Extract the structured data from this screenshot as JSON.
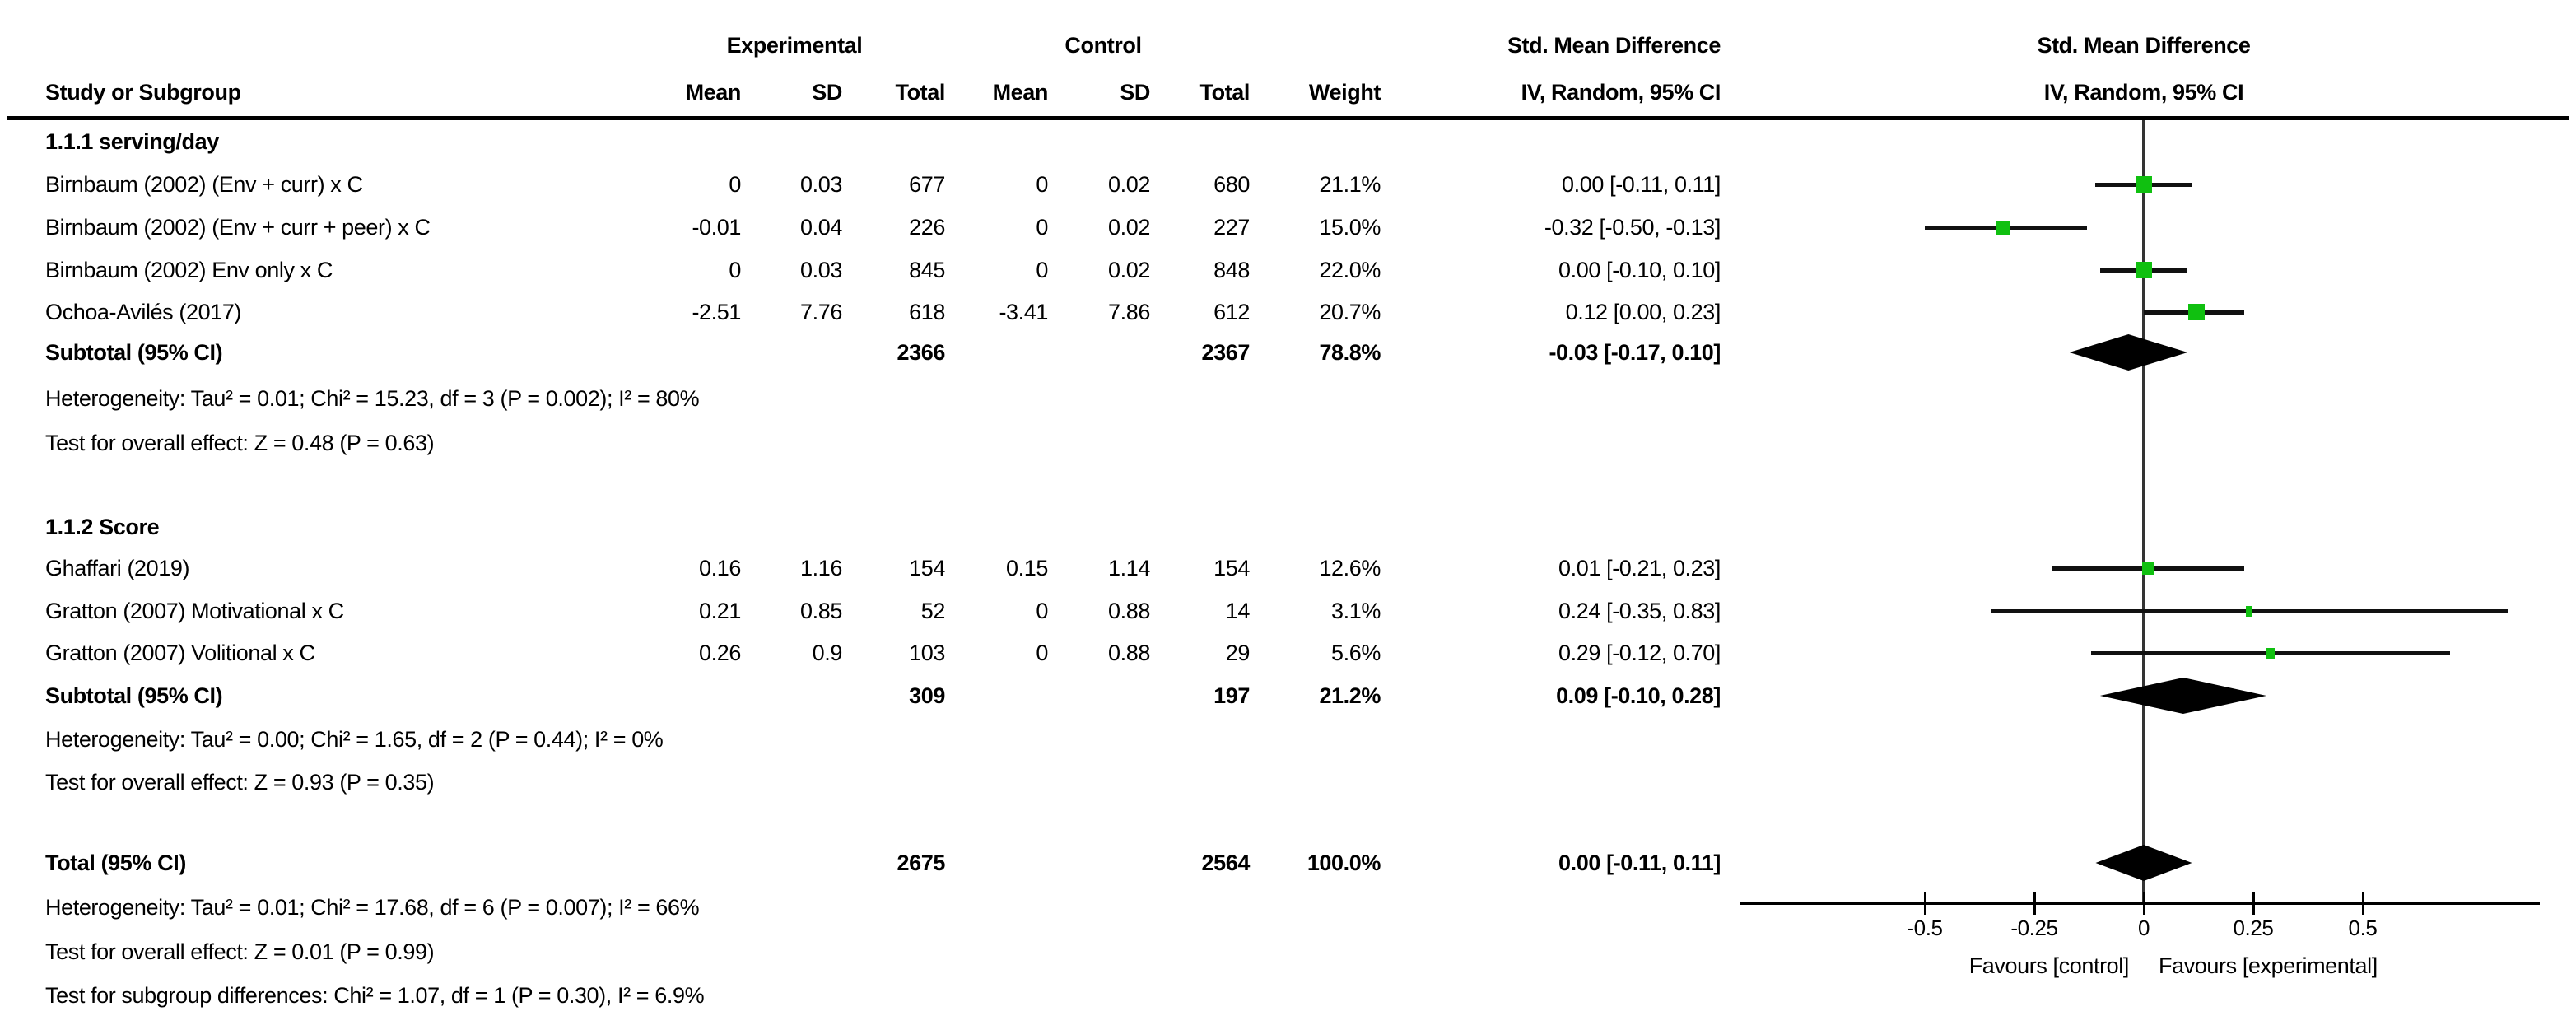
{
  "chart_data": {
    "type": "forest",
    "title_row": {
      "experimental": "Experimental",
      "control": "Control",
      "smd": "Std. Mean Difference"
    },
    "columns": {
      "study": "Study or Subgroup",
      "mean": "Mean",
      "sd": "SD",
      "total": "Total",
      "weight": "Weight",
      "iv": "IV, Random, 95% CI"
    },
    "sections": [
      {
        "heading": "1.1.1 serving/day",
        "rows": [
          {
            "study": "Birnbaum (2002) (Env + curr) x C",
            "exp_mean": "0",
            "exp_sd": "0.03",
            "exp_total": "677",
            "ctrl_mean": "0",
            "ctrl_sd": "0.02",
            "ctrl_total": "680",
            "weight_text": "21.1%",
            "ci_text": "0.00 [-0.11, 0.11]",
            "est": 0.0,
            "lo": -0.11,
            "hi": 0.11,
            "weight": 21.1
          },
          {
            "study": "Birnbaum (2002) (Env + curr + peer) x C",
            "exp_mean": "-0.01",
            "exp_sd": "0.04",
            "exp_total": "226",
            "ctrl_mean": "0",
            "ctrl_sd": "0.02",
            "ctrl_total": "227",
            "weight_text": "15.0%",
            "ci_text": "-0.32 [-0.50, -0.13]",
            "est": -0.32,
            "lo": -0.5,
            "hi": -0.13,
            "weight": 15.0
          },
          {
            "study": "Birnbaum (2002) Env only x C",
            "exp_mean": "0",
            "exp_sd": "0.03",
            "exp_total": "845",
            "ctrl_mean": "0",
            "ctrl_sd": "0.02",
            "ctrl_total": "848",
            "weight_text": "22.0%",
            "ci_text": "0.00 [-0.10, 0.10]",
            "est": 0.0,
            "lo": -0.1,
            "hi": 0.1,
            "weight": 22.0
          },
          {
            "study": "Ochoa-Avilés (2017)",
            "exp_mean": "-2.51",
            "exp_sd": "7.76",
            "exp_total": "618",
            "ctrl_mean": "-3.41",
            "ctrl_sd": "7.86",
            "ctrl_total": "612",
            "weight_text": "20.7%",
            "ci_text": "0.12 [0.00, 0.23]",
            "est": 0.12,
            "lo": 0.0,
            "hi": 0.23,
            "weight": 20.7
          }
        ],
        "subtotal": {
          "label": "Subtotal (95% CI)",
          "exp_total": "2366",
          "ctrl_total": "2367",
          "weight_text": "78.8%",
          "ci_text": "-0.03 [-0.17, 0.10]",
          "est": -0.03,
          "lo": -0.17,
          "hi": 0.1
        },
        "heterogeneity": "Heterogeneity: Tau² = 0.01; Chi² = 15.23, df = 3 (P = 0.002); I² = 80%",
        "overall": "Test for overall effect: Z = 0.48 (P = 0.63)"
      },
      {
        "heading": "1.1.2 Score",
        "rows": [
          {
            "study": "Ghaffari (2019)",
            "exp_mean": "0.16",
            "exp_sd": "1.16",
            "exp_total": "154",
            "ctrl_mean": "0.15",
            "ctrl_sd": "1.14",
            "ctrl_total": "154",
            "weight_text": "12.6%",
            "ci_text": "0.01 [-0.21, 0.23]",
            "est": 0.01,
            "lo": -0.21,
            "hi": 0.23,
            "weight": 12.6
          },
          {
            "study": "Gratton (2007) Motivational x C",
            "exp_mean": "0.21",
            "exp_sd": "0.85",
            "exp_total": "52",
            "ctrl_mean": "0",
            "ctrl_sd": "0.88",
            "ctrl_total": "14",
            "weight_text": "3.1%",
            "ci_text": "0.24 [-0.35, 0.83]",
            "est": 0.24,
            "lo": -0.35,
            "hi": 0.83,
            "weight": 3.1
          },
          {
            "study": "Gratton (2007) Volitional x C",
            "exp_mean": "0.26",
            "exp_sd": "0.9",
            "exp_total": "103",
            "ctrl_mean": "0",
            "ctrl_sd": "0.88",
            "ctrl_total": "29",
            "weight_text": "5.6%",
            "ci_text": "0.29 [-0.12, 0.70]",
            "est": 0.29,
            "lo": -0.12,
            "hi": 0.7,
            "weight": 5.6
          }
        ],
        "subtotal": {
          "label": "Subtotal (95% CI)",
          "exp_total": "309",
          "ctrl_total": "197",
          "weight_text": "21.2%",
          "ci_text": "0.09 [-0.10, 0.28]",
          "est": 0.09,
          "lo": -0.1,
          "hi": 0.28
        },
        "heterogeneity": "Heterogeneity: Tau² = 0.00; Chi² = 1.65, df = 2 (P = 0.44); I² = 0%",
        "overall": "Test for overall effect: Z = 0.93 (P = 0.35)"
      }
    ],
    "total": {
      "label": "Total (95% CI)",
      "exp_total": "2675",
      "ctrl_total": "2564",
      "weight_text": "100.0%",
      "ci_text": "0.00 [-0.11, 0.11]",
      "est": 0.0,
      "lo": -0.11,
      "hi": 0.11
    },
    "footer": {
      "heterogeneity": "Heterogeneity: Tau² = 0.01; Chi² = 17.68, df = 6 (P = 0.007); I² = 66%",
      "overall": "Test for overall effect: Z = 0.01 (P = 0.99)",
      "subgroup": "Test for subgroup differences: Chi² = 1.07, df = 1 (P = 0.30), I² = 6.9%"
    },
    "axis": {
      "min": -0.5,
      "max": 0.5,
      "ticks": [
        -0.5,
        -0.25,
        0,
        0.25,
        0.5
      ],
      "labels": [
        "-0.5",
        "-0.25",
        "0",
        "0.25",
        "0.5"
      ],
      "favours_left": "Favours [control]",
      "favours_right": "Favours [experimental]"
    },
    "colors": {
      "marker_green": "#10c010",
      "line_black": "#111111",
      "diamond_black": "#000000"
    }
  }
}
